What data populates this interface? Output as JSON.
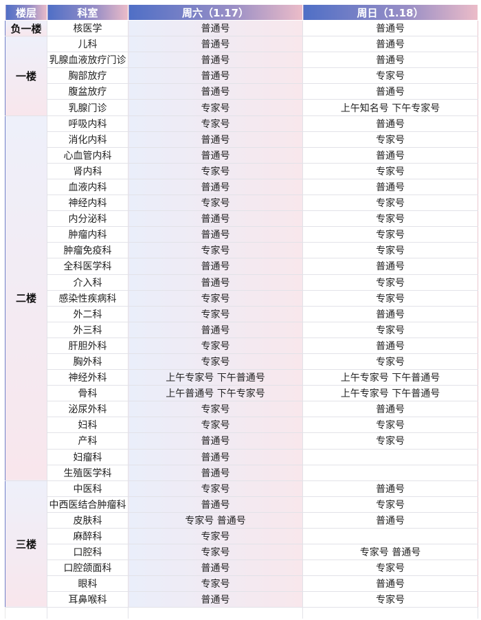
{
  "headers": [
    "楼层",
    "科室",
    "周六（1.17）",
    "周日（1.18）"
  ],
  "floors": [
    {
      "name": "负一楼",
      "rows": [
        [
          "核医学",
          "普通号",
          "普通号"
        ]
      ]
    },
    {
      "name": "一楼",
      "rows": [
        [
          "儿科",
          "普通号",
          "普通号"
        ],
        [
          "乳腺血液放疗门诊",
          "普通号",
          "普通号"
        ],
        [
          "胸部放疗",
          "普通号",
          "专家号"
        ],
        [
          "腹盆放疗",
          "普通号",
          "普通号"
        ],
        [
          "乳腺门诊",
          "专家号",
          "上午知名号 下午专家号"
        ]
      ]
    },
    {
      "name": "二楼",
      "rows": [
        [
          "呼吸内科",
          "专家号",
          "普通号"
        ],
        [
          "消化内科",
          "普通号",
          "专家号"
        ],
        [
          "心血管内科",
          "普通号",
          "普通号"
        ],
        [
          "肾内科",
          "专家号",
          "专家号"
        ],
        [
          "血液内科",
          "普通号",
          "普通号"
        ],
        [
          "神经内科",
          "专家号",
          "专家号"
        ],
        [
          "内分泌科",
          "普通号",
          "专家号"
        ],
        [
          "肿瘤内科",
          "普通号",
          "专家号"
        ],
        [
          "肿瘤免疫科",
          "专家号",
          "专家号"
        ],
        [
          "全科医学科",
          "普通号",
          "普通号"
        ],
        [
          "介入科",
          "普通号",
          "专家号"
        ],
        [
          "感染性疾病科",
          "专家号",
          "专家号"
        ],
        [
          "外二科",
          "专家号",
          "普通号"
        ],
        [
          "外三科",
          "普通号",
          "专家号"
        ],
        [
          "肝胆外科",
          "专家号",
          "普通号"
        ],
        [
          "胸外科",
          "专家号",
          "专家号"
        ],
        [
          "神经外科",
          "上午专家号 下午普通号",
          "上午专家号 下午普通号"
        ],
        [
          "骨科",
          "上午普通号 下午专家号",
          "上午专家号 下午普通号"
        ],
        [
          "泌尿外科",
          "专家号",
          "普通号"
        ],
        [
          "妇科",
          "专家号",
          "专家号"
        ],
        [
          "产科",
          "普通号",
          "专家号"
        ],
        [
          "妇瘤科",
          "普通号",
          ""
        ],
        [
          "生殖医学科",
          "普通号",
          ""
        ]
      ]
    },
    {
      "name": "三楼",
      "rows": [
        [
          "中医科",
          "专家号",
          "普通号"
        ],
        [
          "中西医结合肿瘤科",
          "普通号",
          "专家号"
        ],
        [
          "皮肤科",
          "专家号 普通号",
          "普通号"
        ],
        [
          "麻醉科",
          "专家号",
          ""
        ],
        [
          "口腔科",
          "专家号",
          "专家号 普通号"
        ],
        [
          "口腔颌面科",
          "普通号",
          "专家号"
        ],
        [
          "眼科",
          "专家号",
          "普通号"
        ],
        [
          "耳鼻喉科",
          "普通号",
          "专家号"
        ]
      ]
    }
  ]
}
